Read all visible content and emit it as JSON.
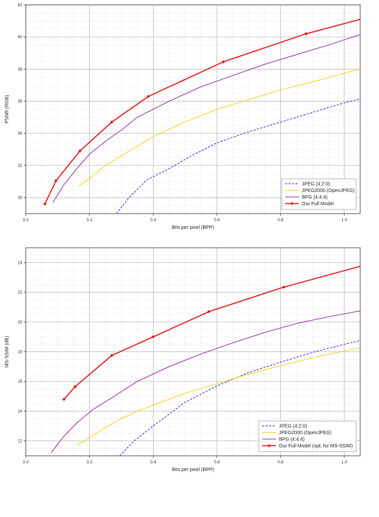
{
  "chart_data": [
    {
      "type": "line",
      "xlabel": "Bits per pixel (BPP)",
      "ylabel": "PSNR (RGB)",
      "xlim": [
        0.0,
        1.05
      ],
      "ylim": [
        29,
        42
      ],
      "xticks": [
        0.0,
        0.2,
        0.4,
        0.6,
        0.8,
        1.0
      ],
      "xtick_labels": [
        "0.0",
        "0.2",
        "0.4",
        "0.6",
        "0.8",
        "1.0"
      ],
      "yticks": [
        30,
        32,
        34,
        36,
        38,
        40,
        42
      ],
      "ytick_labels": [
        "30",
        "32",
        "34",
        "36",
        "38",
        "40",
        "42"
      ],
      "grid": true,
      "legend_position": "bottom-right",
      "series": [
        {
          "name": "JPEG (4:2:0)",
          "color": "#2a2ad0",
          "dash": "dashed",
          "markers": false,
          "x": [
            0.285,
            0.32,
            0.38,
            0.45,
            0.52,
            0.6,
            0.7,
            0.8,
            0.9,
            1.0,
            1.05
          ],
          "y": [
            29.0,
            29.9,
            31.1,
            31.8,
            32.6,
            33.4,
            34.1,
            34.7,
            35.3,
            35.9,
            36.15
          ]
        },
        {
          "name": "JPEG2000 (OpenJPEG)",
          "color": "#f3d21a",
          "dash": "solid",
          "markers": false,
          "x": [
            0.165,
            0.2,
            0.25,
            0.3,
            0.35,
            0.4,
            0.5,
            0.6,
            0.7,
            0.8,
            0.9,
            1.0,
            1.05
          ],
          "y": [
            30.7,
            31.2,
            32.0,
            32.6,
            33.2,
            33.8,
            34.7,
            35.5,
            36.1,
            36.7,
            37.2,
            37.75,
            38.0
          ]
        },
        {
          "name": "BPG (4:4:4)",
          "color": "#8e2b9e",
          "dash": "solid",
          "markers": false,
          "x": [
            0.085,
            0.12,
            0.16,
            0.2,
            0.25,
            0.3,
            0.35,
            0.45,
            0.55,
            0.65,
            0.75,
            0.85,
            0.95,
            1.05
          ],
          "y": [
            29.7,
            30.8,
            31.8,
            32.7,
            33.5,
            34.2,
            35.0,
            36.0,
            36.9,
            37.6,
            38.3,
            38.9,
            39.5,
            40.15
          ]
        },
        {
          "name": "Our Full Model",
          "color": "#e31a1c",
          "dash": "solid",
          "markers": true,
          "x": [
            0.06,
            0.095,
            0.17,
            0.27,
            0.385,
            0.62,
            0.88,
            1.05
          ],
          "y": [
            29.6,
            31.05,
            32.9,
            34.7,
            36.3,
            38.45,
            40.2,
            41.1
          ]
        }
      ]
    },
    {
      "type": "line",
      "xlabel": "Bits per pixel (BPP)",
      "ylabel": "MS-SSIM (dB)",
      "xlim": [
        0.0,
        1.05
      ],
      "ylim": [
        11,
        25
      ],
      "xticks": [
        0.0,
        0.2,
        0.4,
        0.6,
        0.8,
        1.0
      ],
      "xtick_labels": [
        "0.0",
        "0.2",
        "0.4",
        "0.6",
        "0.8",
        "1.0"
      ],
      "yticks": [
        12,
        14,
        16,
        18,
        20,
        22,
        24
      ],
      "ytick_labels": [
        "12",
        "14",
        "16",
        "18",
        "20",
        "22",
        "24"
      ],
      "grid": true,
      "legend_position": "bottom-right",
      "series": [
        {
          "name": "JPEG (4:2:0)",
          "color": "#2a2ad0",
          "dash": "dashed",
          "markers": false,
          "x": [
            0.295,
            0.34,
            0.4,
            0.45,
            0.5,
            0.6,
            0.7,
            0.8,
            0.9,
            1.0,
            1.05
          ],
          "y": [
            11.0,
            12.0,
            13.0,
            13.8,
            14.6,
            15.7,
            16.6,
            17.3,
            17.95,
            18.5,
            18.75
          ]
        },
        {
          "name": "JPEG2000 (OpenJPEG)",
          "color": "#f3d21a",
          "dash": "solid",
          "markers": false,
          "x": [
            0.16,
            0.2,
            0.25,
            0.3,
            0.35,
            0.4,
            0.5,
            0.6,
            0.7,
            0.8,
            0.9,
            1.0,
            1.05
          ],
          "y": [
            11.7,
            12.2,
            12.9,
            13.5,
            14.0,
            14.4,
            15.2,
            15.85,
            16.5,
            17.05,
            17.6,
            18.05,
            18.25
          ]
        },
        {
          "name": "BPG (4:4:4)",
          "color": "#8e2b9e",
          "dash": "solid",
          "markers": false,
          "x": [
            0.08,
            0.115,
            0.16,
            0.21,
            0.27,
            0.35,
            0.45,
            0.55,
            0.65,
            0.75,
            0.85,
            0.95,
            1.05
          ],
          "y": [
            11.2,
            12.2,
            13.2,
            14.1,
            14.9,
            16.0,
            17.0,
            17.85,
            18.6,
            19.3,
            19.9,
            20.35,
            20.75
          ]
        },
        {
          "name": "Our Full Model (opt. for MS-SSIM)",
          "color": "#e31a1c",
          "dash": "solid",
          "markers": true,
          "x": [
            0.12,
            0.155,
            0.27,
            0.4,
            0.575,
            0.81,
            1.05
          ],
          "y": [
            14.8,
            15.65,
            17.75,
            19.0,
            20.7,
            22.35,
            23.75
          ]
        }
      ]
    }
  ]
}
